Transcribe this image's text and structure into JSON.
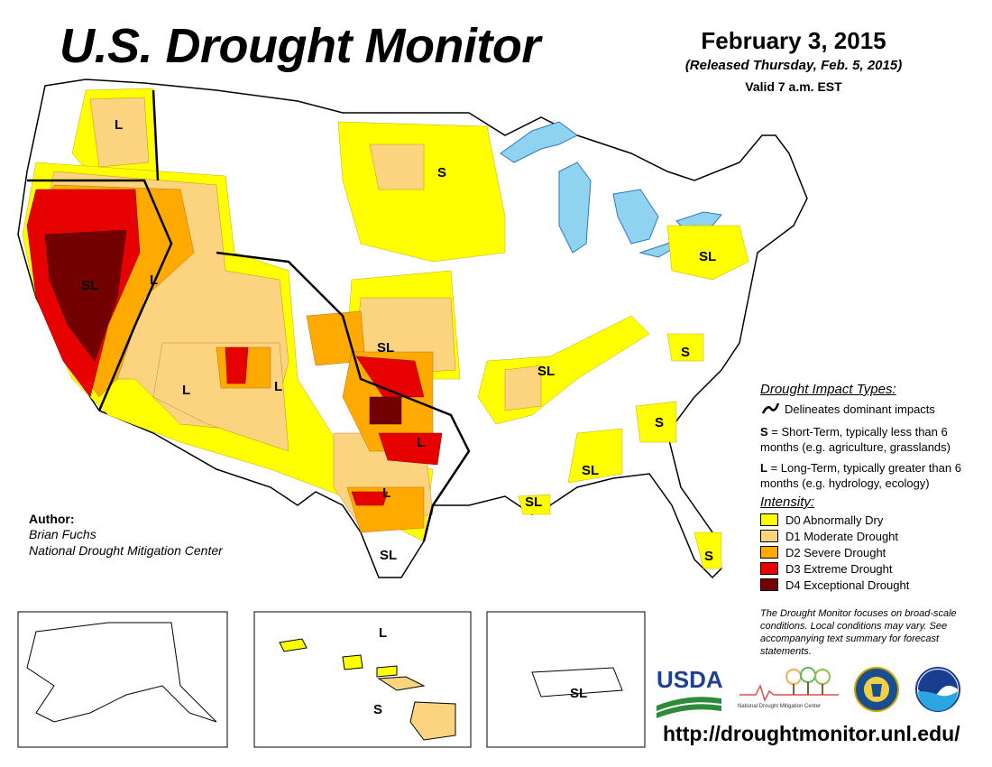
{
  "header": {
    "title": "U.S. Drought Monitor",
    "date": "February 3, 2015",
    "released": "(Released Thursday, Feb. 5, 2015)",
    "valid": "Valid 7 a.m. EST"
  },
  "author": {
    "heading": "Author:",
    "name": "Brian Fuchs",
    "organization": "National Drought Mitigation Center"
  },
  "impact_types": {
    "title": "Drought Impact Types:",
    "line_label": "Delineates dominant impacts",
    "short_term_key": "S",
    "short_term_text": " = Short-Term, typically less than 6 months (e.g. agriculture, grasslands)",
    "long_term_key": "L",
    "long_term_text": " = Long-Term, typically greater than 6 months (e.g. hydrology, ecology)"
  },
  "intensity": {
    "title": "Intensity:",
    "items": [
      {
        "label": "D0 Abnormally Dry",
        "color": "#ffff00"
      },
      {
        "label": "D1 Moderate Drought",
        "color": "#fcd37f"
      },
      {
        "label": "D2 Severe Drought",
        "color": "#ffaa00"
      },
      {
        "label": "D3 Extreme Drought",
        "color": "#e60000"
      },
      {
        "label": "D4 Exceptional Drought",
        "color": "#730000"
      }
    ]
  },
  "note": "The Drought Monitor focuses on broad-scale conditions. Local conditions may vary. See accompanying text summary for forecast statements.",
  "url": "http://droughtmonitor.unl.edu/",
  "logos": {
    "usda": "USDA",
    "ndmc": "National Drought Mitigation Center",
    "doc_icon": "commerce-seal-icon",
    "noaa": "NOAA"
  },
  "map_labels": {
    "pnw_l": "L",
    "ca_sl": "SL",
    "nv_l": "L",
    "az_l": "L",
    "nm_l": "L",
    "ks_sl": "SL",
    "tx_l1": "L",
    "tx_l2": "L",
    "tx_sl": "SL",
    "mn_s": "S",
    "pa_sl": "SL",
    "ar_sl": "SL",
    "va_s": "S",
    "ga_s": "S",
    "al_sl": "SL",
    "la_sl": "SL",
    "fl_s": "S",
    "hi_l": "L",
    "hi_s": "S",
    "pr_sl": "SL"
  }
}
